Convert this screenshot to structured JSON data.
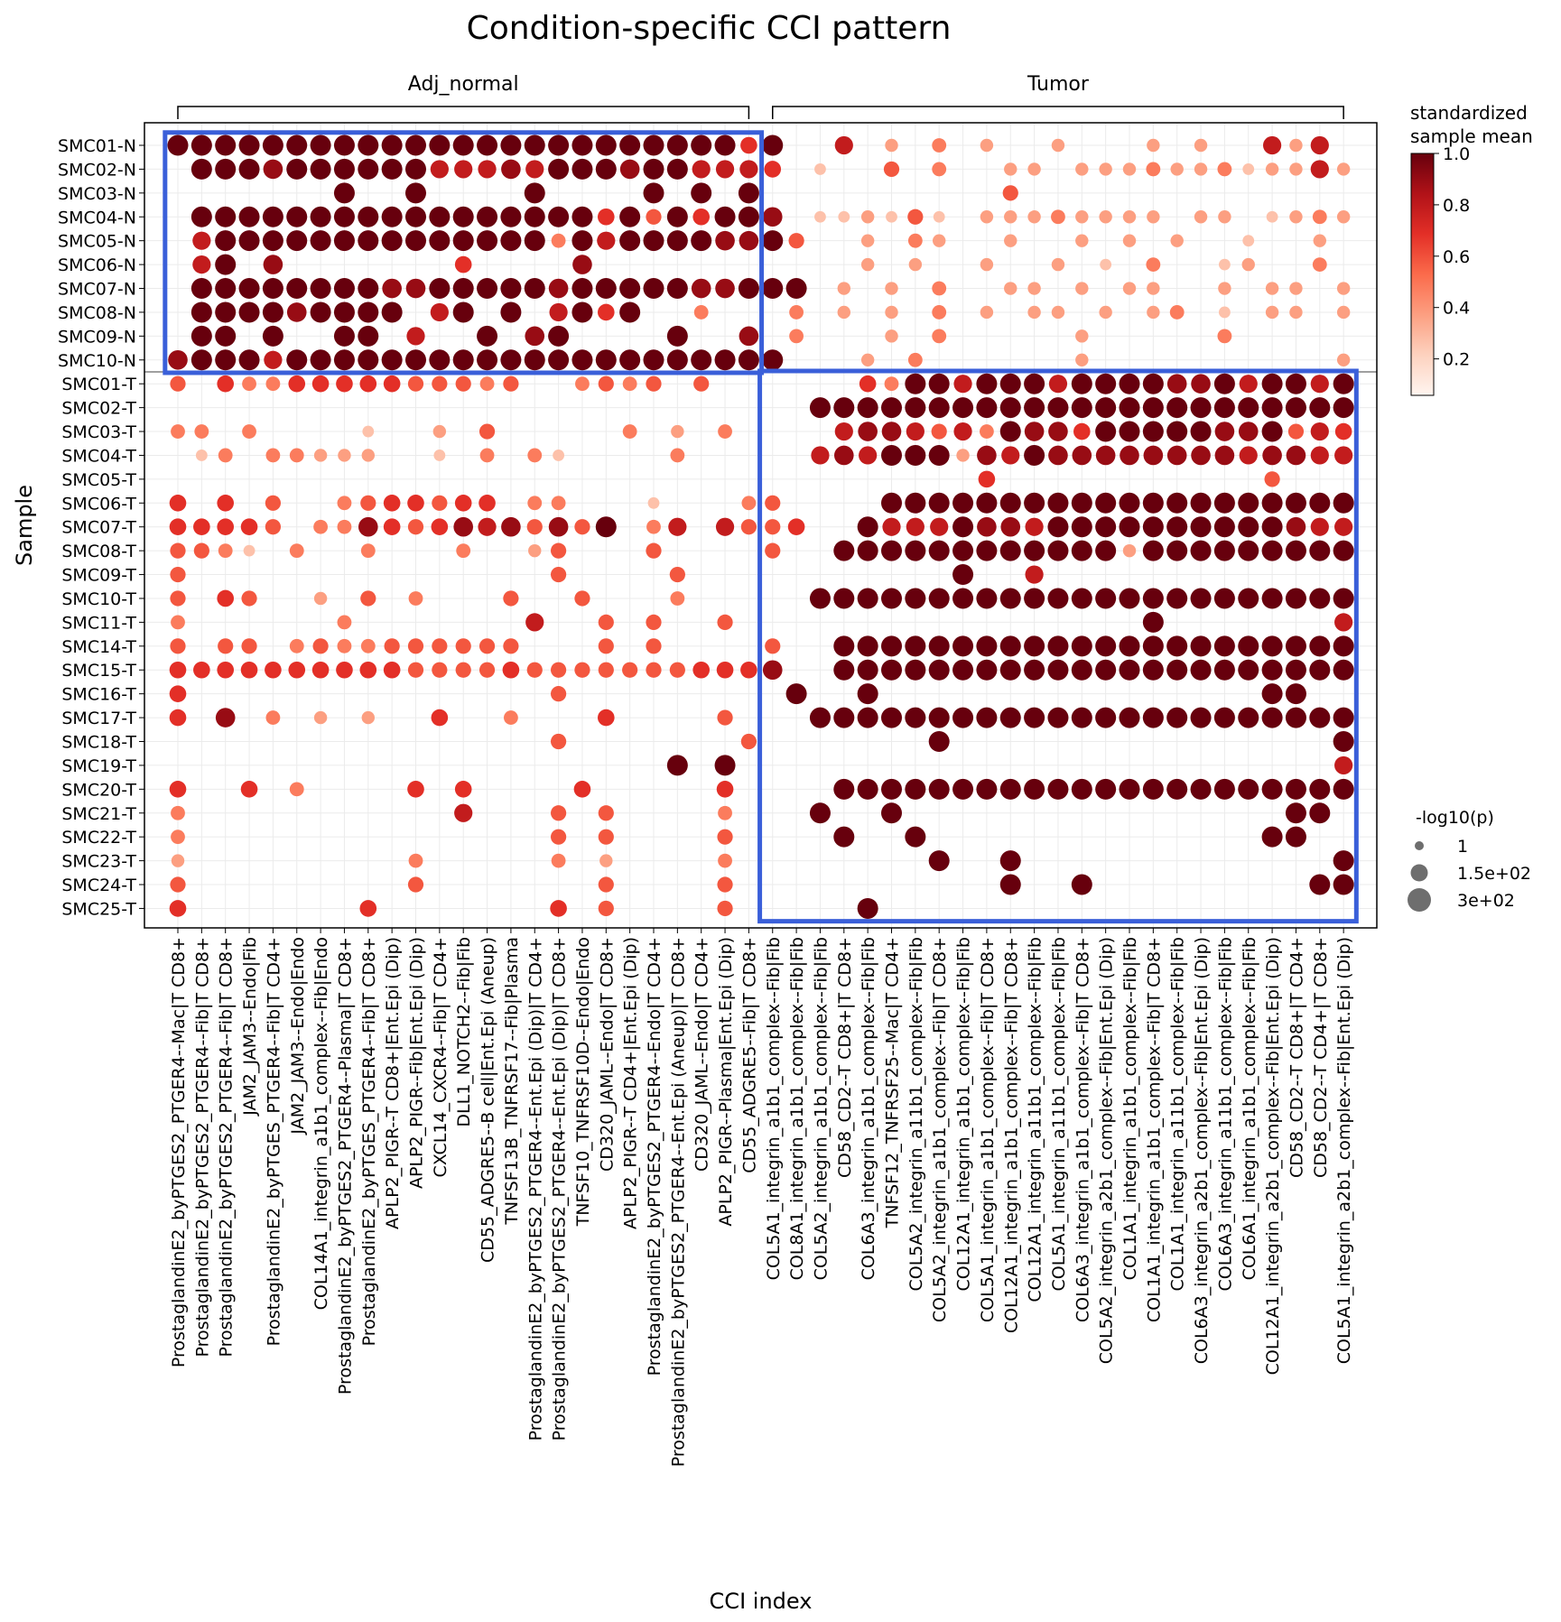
{
  "chart_data": {
    "type": "dotplot",
    "title": "Condition-specific CCI pattern",
    "xlabel": "CCI index",
    "ylabel": "Sample",
    "groups": [
      {
        "label": "Adj_normal",
        "from": 0,
        "to": 24
      },
      {
        "label": "Tumor",
        "from": 25,
        "to": 49
      }
    ],
    "rows": [
      "SMC01-N",
      "SMC02-N",
      "SMC03-N",
      "SMC04-N",
      "SMC05-N",
      "SMC06-N",
      "SMC07-N",
      "SMC08-N",
      "SMC09-N",
      "SMC10-N",
      "SMC01-T",
      "SMC02-T",
      "SMC03-T",
      "SMC04-T",
      "SMC05-T",
      "SMC06-T",
      "SMC07-T",
      "SMC08-T",
      "SMC09-T",
      "SMC10-T",
      "SMC11-T",
      "SMC14-T",
      "SMC15-T",
      "SMC16-T",
      "SMC17-T",
      "SMC18-T",
      "SMC19-T",
      "SMC20-T",
      "SMC21-T",
      "SMC22-T",
      "SMC23-T",
      "SMC24-T",
      "SMC25-T"
    ],
    "columns": [
      "ProstaglandinE2_byPTGES2_PTGER4--Mac|T CD8+",
      "ProstaglandinE2_byPTGES2_PTGER4--Fib|T CD8+",
      "ProstaglandinE2_byPTGES2_PTGER4--Fib|T CD8+",
      "JAM2_JAM3--Endo|Fib",
      "ProstaglandinE2_byPTGES_PTGER4--Fib|T CD4+",
      "JAM2_JAM3--Endo|Endo",
      "COL14A1_integrin_a1b1_complex--Fib|Endo",
      "ProstaglandinE2_byPTGES2_PTGER4--Plasma|T CD8+",
      "ProstaglandinE2_byPTGES_PTGER4--Fib|T CD8+",
      "APLP2_PIGR--T CD8+|Ent.Epi (Dip)",
      "APLP2_PIGR--Fib|Ent.Epi (Dip)",
      "CXCL14_CXCR4--Fib|T CD4+",
      "DLL1_NOTCH2--Fib|Fib",
      "CD55_ADGRE5--B cell|Ent.Epi (Aneup)",
      "TNFSF13B_TNFRSF17--Fib|Plasma",
      "ProstaglandinE2_byPTGES2_PTGER4--Ent.Epi (Dip)|T CD4+",
      "ProstaglandinE2_byPTGES2_PTGER4--Ent.Epi (Dip)|T CD8+",
      "TNFSF10_TNFRSF10D--Endo|Endo",
      "CD320_JAML--Endo|T CD8+",
      "APLP2_PIGR--T CD4+|Ent.Epi (Dip)",
      "ProstaglandinE2_byPTGES2_PTGER4--Endo|T CD4+",
      "ProstaglandinE2_byPTGES2_PTGER4--Ent.Epi (Aneup)|T CD8+",
      "CD320_JAML--Endo|T CD4+",
      "APLP2_PIGR--Plasma|Ent.Epi (Dip)",
      "CD55_ADGRE5--Fib|T CD8+",
      "COL5A1_integrin_a1b1_complex--Fib|Fib",
      "COL8A1_integrin_a1b1_complex--Fib|Fib",
      "COL5A2_integrin_a1b1_complex--Fib|Fib",
      "CD58_CD2--T CD8+|T CD8+",
      "COL6A3_integrin_a1b1_complex--Fib|Fib",
      "TNFSF12_TNFRSF25--Mac|T CD4+",
      "COL5A2_integrin_a11b1_complex--Fib|Fib",
      "COL5A2_integrin_a1b1_complex--Fib|T CD8+",
      "COL12A1_integrin_a1b1_complex--Fib|Fib",
      "COL5A1_integrin_a1b1_complex--Fib|T CD8+",
      "COL12A1_integrin_a1b1_complex--Fib|T CD8+",
      "COL12A1_integrin_a11b1_complex--Fib|Fib",
      "COL5A1_integrin_a11b1_complex--Fib|Fib",
      "COL6A3_integrin_a1b1_complex--Fib|T CD8+",
      "COL5A2_integrin_a2b1_complex--Fib|Ent.Epi (Dip)",
      "COL1A1_integrin_a1b1_complex--Fib|Fib",
      "COL1A1_integrin_a1b1_complex--Fib|T CD8+",
      "COL1A1_integrin_a11b1_complex--Fib|Fib",
      "COL6A3_integrin_a2b1_complex--Fib|Ent.Epi (Dip)",
      "COL6A3_integrin_a11b1_complex--Fib|Fib",
      "COL6A1_integrin_a1b1_complex--Fib|Fib",
      "COL12A1_integrin_a2b1_complex--Fib|Ent.Epi (Dip)",
      "CD58_CD2--T CD8+|T CD4+",
      "CD58_CD2--T CD4+|T CD8+",
      "COL5A1_integrin_a2b1_complex--Fib|Ent.Epi (Dip)"
    ],
    "matrix": [
      "99999999999999999999999969..7.3.4.3..3...3.3..737.4",
      ".9998999999777879998997776.2..5.4..33.333433423373425",
      ".......9..9....9....9.9.9..........5..............4.",
      ".9999999999999999969596998.223252.33343333.33.2343.",
      ".79999999999999949799998895..3.43..3..3.3.3..2..3.3..33.43.3",
      ".79.8.......6....8...........3.3..3..3.2.4..23..4.....",
      ".99999999889999989999988999.3.3.4..33.3.33..3.33.333..43.33",
      ".999989999.79.9.7969..4...4.3.3.4.3.33.3.34.2.33.34.5.44",
      ".99.9..99.7..9.89....9..8.4...3.4.....3.....4.......3.4",
      "89997999999999999999999999...3.4......3..........3...",
      "5.6446666655545..4545.5......6499799979999889799799998",
      "...........................9999999999999999999999999999",
      "44.4....2..3.5.....4.3.4....788757498869999988957688799",
      ".24.44333..2.4.42....4.....7879993879888888887887777999",
      "..................................6...........5.........",
      "6.6.5..4566566.44...2...45....999999999999999999999999",
      "66665.4486568785859.47.7556..9777988799999999998777777",
      "5542.4..4...4..35...5....5..9999999999993999999999999",
      "5...............5....5...........9..7.............99",
      "5.65..3.5.4...5..5...4.....99999999999999999999999999",
      "4......4.......7..5.5..5.................9.......77",
      "5.55.4544555555...5.5....5..9999999999999999999999999",
      "66666666665555655555556668..9999999999999999999999999",
      "6...............5.........9..9................99",
      "6.8.4.3.3..6..4...6....5...9999999999999999999999999",
      "................5.......5.......9................99",
      ".....................9.9.........................77",
      "6..6.4....6.6....6.....6....999999999999999999999999",
      "4...........7...5.5....4...9..9................99",
      "4...............5.5....5....9..9..............99",
      "3.........4.....4.3....4........9..9.............99",
      "5.........5.......5....5...........9..9.........99",
      "6.......6.......6.5....5.....9.......................99"
    ],
    "colorbar": {
      "label": "standardized sample mean",
      "ticks": [
        0.2,
        0.4,
        0.6,
        0.8,
        1.0
      ],
      "tick_labels": [
        "0.2",
        "0.4",
        "0.6",
        "0.8",
        "1.0"
      ],
      "colors": [
        "#fff5f0",
        "#fdd2bf",
        "#fc9f81",
        "#fb6b4b",
        "#e32f27",
        "#b11218",
        "#67000d"
      ]
    },
    "size_legend": {
      "label": "-log10(p)",
      "entries": [
        "1",
        "1.5e+02",
        "3e+02"
      ]
    },
    "highlight_boxes": [
      {
        "rows_from": 0,
        "rows_to": 9,
        "cols_from": 0,
        "cols_to": 24,
        "color": "#3a5fd9"
      },
      {
        "rows_from": 10,
        "rows_to": 32,
        "cols_from": 25,
        "cols_to": 49,
        "color": "#3a5fd9"
      }
    ]
  }
}
